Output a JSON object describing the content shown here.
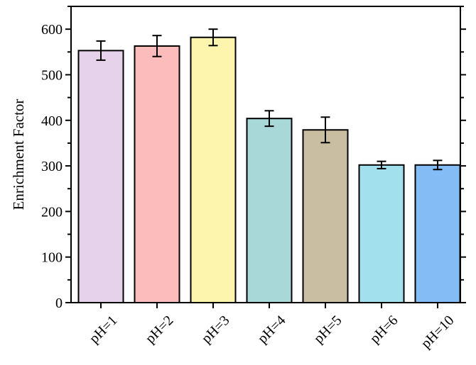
{
  "chart_data": {
    "type": "bar",
    "ylabel": "Enrichment Factor",
    "xlabel": "",
    "ylim": [
      0,
      650
    ],
    "yticks": [
      0,
      100,
      200,
      300,
      400,
      500,
      600
    ],
    "grid": false,
    "categories": [
      "pH=1",
      "pH=2",
      "pH=3",
      "pH=4",
      "pH=5",
      "pH=6",
      "pH=10"
    ],
    "values": [
      553,
      563,
      582,
      404,
      379,
      302,
      302
    ],
    "errors": [
      21,
      23,
      18,
      17,
      28,
      8,
      10
    ],
    "colors": [
      "#e6d3eb",
      "#fdbcbc",
      "#fdf5ae",
      "#a9d8d8",
      "#c9bea1",
      "#a2e0ee",
      "#84bdf6"
    ]
  }
}
